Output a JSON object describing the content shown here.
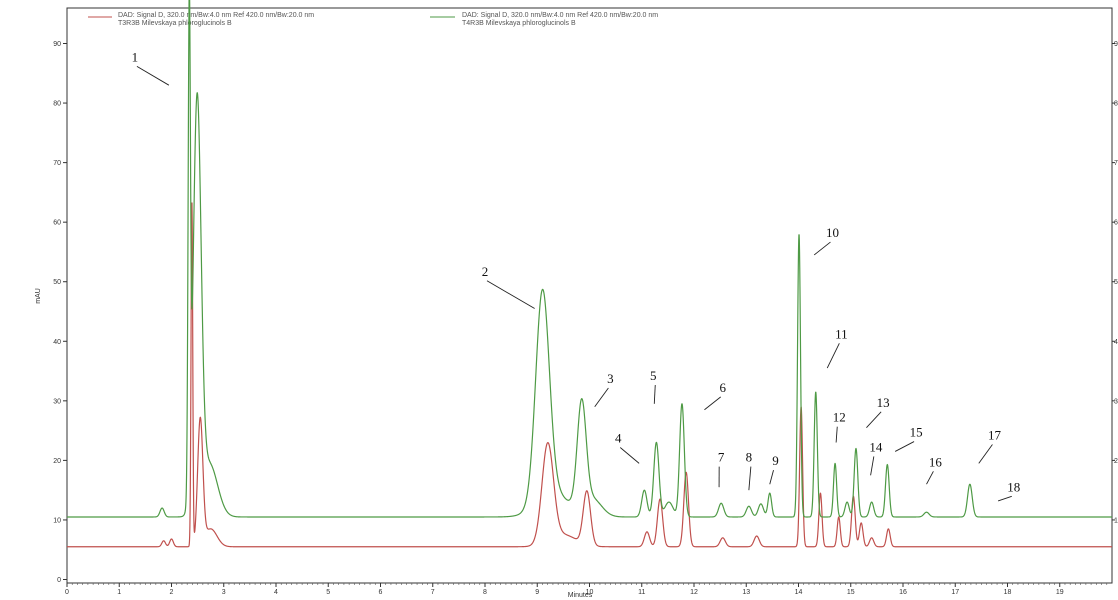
{
  "chart_data": {
    "type": "line",
    "xlabel": "Minutes",
    "ylabel": "mAU",
    "xlim": [
      0,
      20
    ],
    "ylim": [
      0,
      95
    ],
    "x_ticks": [
      "0",
      "1",
      "2",
      "3",
      "4",
      "5",
      "6",
      "7",
      "8",
      "9",
      "10",
      "11",
      "12",
      "13",
      "14",
      "15",
      "16",
      "17",
      "18",
      "19"
    ],
    "y_ticks": [
      "0",
      "10",
      "20",
      "30",
      "40",
      "50",
      "60",
      "70",
      "80",
      "90"
    ],
    "y_ticks_right": [
      "10",
      "20",
      "30",
      "40",
      "50",
      "60",
      "70",
      "80",
      "90"
    ],
    "legend": [
      {
        "line1": "DAD: Signal D, 320.0 nm/Bw:4.0 nm Ref 420.0 nm/Bw:20.0 nm",
        "line2": "T3R3B Milevskaya phloroglucinols B",
        "color": "#c0504d"
      },
      {
        "line1": "DAD: Signal D, 320.0 nm/Bw:4.0 nm Ref 420.0 nm/Bw:20.0 nm",
        "line2": "T4R3B Milevskaya phloroglucinols B",
        "color": "#4e9a45"
      }
    ],
    "series": [
      {
        "color": "#4e9a45",
        "baseline": 10.5,
        "peaks": [
          {
            "t": 1.82,
            "h": 1.5,
            "w": 0.04
          },
          {
            "t": 2.34,
            "h": 79.5,
            "w": 0.022
          },
          {
            "t": 2.49,
            "h": 68.0,
            "w": 0.075
          },
          {
            "t": 2.72,
            "h": 9.0,
            "w": 0.16
          },
          {
            "t": 9.1,
            "h": 35.0,
            "w": 0.13
          },
          {
            "t": 9.3,
            "h": 4.0,
            "w": 0.3
          },
          {
            "t": 9.85,
            "h": 17.5,
            "w": 0.085
          },
          {
            "t": 10.05,
            "h": 3.0,
            "w": 0.18
          },
          {
            "t": 11.05,
            "h": 4.5,
            "w": 0.05
          },
          {
            "t": 11.28,
            "h": 12.5,
            "w": 0.05
          },
          {
            "t": 11.52,
            "h": 2.5,
            "w": 0.08
          },
          {
            "t": 11.77,
            "h": 19.0,
            "w": 0.045
          },
          {
            "t": 12.52,
            "h": 2.3,
            "w": 0.05
          },
          {
            "t": 13.05,
            "h": 1.8,
            "w": 0.05
          },
          {
            "t": 13.28,
            "h": 2.2,
            "w": 0.05
          },
          {
            "t": 13.45,
            "h": 4.0,
            "w": 0.035
          },
          {
            "t": 14.01,
            "h": 47.5,
            "w": 0.028
          },
          {
            "t": 14.33,
            "h": 21.0,
            "w": 0.03
          },
          {
            "t": 14.7,
            "h": 9.0,
            "w": 0.03
          },
          {
            "t": 14.93,
            "h": 2.5,
            "w": 0.04
          },
          {
            "t": 15.1,
            "h": 11.5,
            "w": 0.035
          },
          {
            "t": 15.4,
            "h": 2.5,
            "w": 0.04
          },
          {
            "t": 15.7,
            "h": 8.8,
            "w": 0.035
          },
          {
            "t": 16.45,
            "h": 0.8,
            "w": 0.05
          },
          {
            "t": 17.28,
            "h": 5.5,
            "w": 0.045
          }
        ]
      },
      {
        "color": "#c0504d",
        "baseline": 5.5,
        "peaks": [
          {
            "t": 1.85,
            "h": 1.0,
            "w": 0.035
          },
          {
            "t": 2.0,
            "h": 1.3,
            "w": 0.035
          },
          {
            "t": 2.39,
            "h": 58.0,
            "w": 0.016
          },
          {
            "t": 2.55,
            "h": 21.0,
            "w": 0.05
          },
          {
            "t": 2.75,
            "h": 3.0,
            "w": 0.12
          },
          {
            "t": 9.2,
            "h": 16.5,
            "w": 0.11
          },
          {
            "t": 9.5,
            "h": 2.0,
            "w": 0.25
          },
          {
            "t": 9.95,
            "h": 9.0,
            "w": 0.07
          },
          {
            "t": 11.1,
            "h": 2.5,
            "w": 0.05
          },
          {
            "t": 11.35,
            "h": 8.0,
            "w": 0.05
          },
          {
            "t": 11.85,
            "h": 12.5,
            "w": 0.045
          },
          {
            "t": 12.55,
            "h": 1.5,
            "w": 0.05
          },
          {
            "t": 13.2,
            "h": 1.8,
            "w": 0.05
          },
          {
            "t": 14.05,
            "h": 23.5,
            "w": 0.028
          },
          {
            "t": 14.42,
            "h": 9.0,
            "w": 0.03
          },
          {
            "t": 14.77,
            "h": 5.0,
            "w": 0.03
          },
          {
            "t": 15.05,
            "h": 8.5,
            "w": 0.035
          },
          {
            "t": 15.2,
            "h": 4.0,
            "w": 0.035
          },
          {
            "t": 15.4,
            "h": 1.5,
            "w": 0.04
          },
          {
            "t": 15.72,
            "h": 3.0,
            "w": 0.035
          }
        ]
      }
    ],
    "peak_labels": [
      {
        "label": "1",
        "at": [
          1.3,
          87.0
        ],
        "to": [
          1.95,
          83.0
        ]
      },
      {
        "label": "2",
        "at": [
          8.0,
          51.0
        ],
        "to": [
          8.95,
          45.5
        ]
      },
      {
        "label": "3",
        "at": [
          10.4,
          33.0
        ],
        "to": [
          10.1,
          29.0
        ]
      },
      {
        "label": "4",
        "at": [
          10.55,
          23.0
        ],
        "to": [
          10.95,
          19.5
        ]
      },
      {
        "label": "5",
        "at": [
          11.22,
          33.5
        ],
        "to": [
          11.24,
          29.5
        ]
      },
      {
        "label": "6",
        "at": [
          12.55,
          31.5
        ],
        "to": [
          12.2,
          28.5
        ]
      },
      {
        "label": "7",
        "at": [
          12.52,
          19.8
        ],
        "to": [
          12.48,
          15.5
        ]
      },
      {
        "label": "8",
        "at": [
          13.05,
          19.8
        ],
        "to": [
          13.05,
          15.0
        ]
      },
      {
        "label": "9",
        "at": [
          13.56,
          19.2
        ],
        "to": [
          13.45,
          16.0
        ]
      },
      {
        "label": "10",
        "at": [
          14.65,
          57.5
        ],
        "to": [
          14.3,
          54.5
        ]
      },
      {
        "label": "11",
        "at": [
          14.82,
          40.5
        ],
        "to": [
          14.55,
          35.5
        ]
      },
      {
        "label": "12",
        "at": [
          14.78,
          26.5
        ],
        "to": [
          14.72,
          23.0
        ]
      },
      {
        "label": "13",
        "at": [
          15.62,
          29.0
        ],
        "to": [
          15.3,
          25.5
        ]
      },
      {
        "label": "14",
        "at": [
          15.48,
          21.5
        ],
        "to": [
          15.38,
          17.5
        ]
      },
      {
        "label": "15",
        "at": [
          16.25,
          24.0
        ],
        "to": [
          15.85,
          21.5
        ]
      },
      {
        "label": "16",
        "at": [
          16.62,
          19.0
        ],
        "to": [
          16.45,
          16.0
        ]
      },
      {
        "label": "17",
        "at": [
          17.75,
          23.5
        ],
        "to": [
          17.45,
          19.5
        ]
      },
      {
        "label": "18",
        "at": [
          18.12,
          14.8
        ],
        "to": [
          17.82,
          13.2
        ]
      }
    ]
  }
}
